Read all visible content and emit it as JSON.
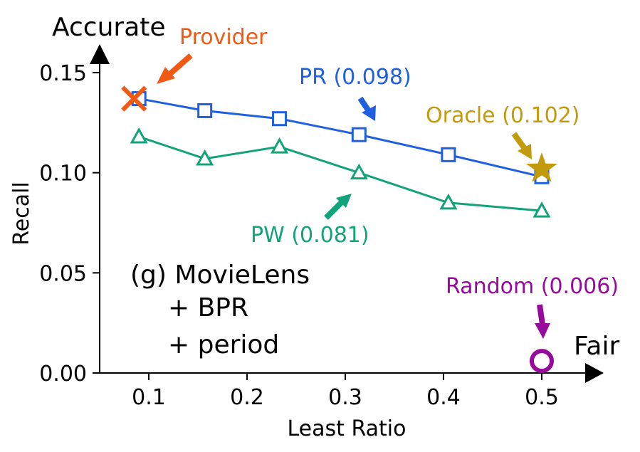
{
  "chart_data": {
    "type": "line",
    "title": "",
    "xlabel": "Least Ratio",
    "ylabel": "Recall",
    "xlim": [
      0.05,
      0.55
    ],
    "ylim": [
      0.0,
      0.15
    ],
    "xticks": [
      0.1,
      0.2,
      0.3,
      0.4,
      0.5
    ],
    "yticks": [
      0.0,
      0.05,
      0.1,
      0.15
    ],
    "xtick_labels": [
      "0.1",
      "0.2",
      "0.3",
      "0.4",
      "0.5"
    ],
    "ytick_labels": [
      "0.00",
      "0.05",
      "0.10",
      "0.15"
    ],
    "grid": false,
    "axis_end_labels": {
      "y_top": "Accurate",
      "x_right": "Fair"
    },
    "panel_label": [
      "(g) MovieLens",
      "+ BPR",
      "+ period"
    ],
    "series": [
      {
        "name": "PR (0.098)",
        "color": "#1f5fe0",
        "marker": "square",
        "x": [
          0.09,
          0.157,
          0.233,
          0.314,
          0.405,
          0.5
        ],
        "y": [
          0.137,
          0.131,
          0.127,
          0.119,
          0.109,
          0.098
        ]
      },
      {
        "name": "PW (0.081)",
        "color": "#12a37a",
        "marker": "triangle",
        "x": [
          0.09,
          0.157,
          0.233,
          0.314,
          0.405,
          0.5
        ],
        "y": [
          0.118,
          0.107,
          0.113,
          0.1,
          0.085,
          0.081
        ]
      }
    ],
    "points": [
      {
        "name": "Provider",
        "color": "#f05a14",
        "marker": "x",
        "x": 0.085,
        "y": 0.137
      },
      {
        "name": "Oracle (0.102)",
        "color": "#c39a0c",
        "marker": "star",
        "x": 0.5,
        "y": 0.102
      },
      {
        "name": "Random (0.006)",
        "color": "#960b9c",
        "marker": "circle",
        "x": 0.5,
        "y": 0.006
      }
    ]
  }
}
